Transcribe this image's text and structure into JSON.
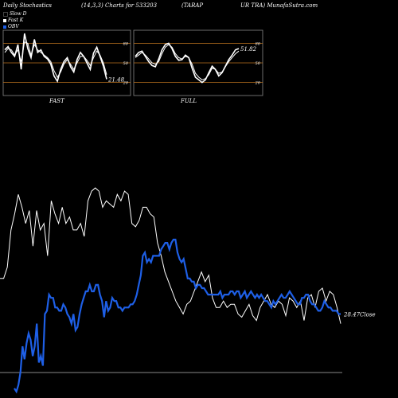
{
  "header": {
    "title_left": "Daily Stochastics",
    "title_mid": "(14,3,3) Charts for 533203",
    "title_sym1": "(TARAP",
    "title_sym2": "UR TRA) MunafaSutra.com"
  },
  "legend": [
    {
      "label": "Slow  D",
      "color": "#000000"
    },
    {
      "label": "Fast K",
      "color": "#ffffff"
    },
    {
      "label": "OBV",
      "color": "#1e5fe6"
    }
  ],
  "colors": {
    "background": "#000000",
    "line_white": "#ffffff",
    "obv_blue": "#1e5fe6",
    "band_orange": "#b8701e",
    "grid_grey": "#888888"
  },
  "chart_data": [
    {
      "type": "line",
      "title": "FAST",
      "ylim": [
        0,
        100
      ],
      "levels": [
        20,
        50,
        80
      ],
      "level_labels": [
        "20",
        "50",
        "80"
      ],
      "last_value_label": "21.48",
      "series": [
        {
          "values": [
            70,
            75,
            66,
            60,
            78,
            40,
            95,
            72,
            58,
            86,
            66,
            70,
            60,
            56,
            48,
            30,
            22,
            40,
            52,
            58,
            44,
            36,
            55,
            66,
            60,
            50,
            40,
            65,
            74,
            60,
            45,
            25
          ]
        },
        {
          "values": [
            66,
            72,
            70,
            62,
            70,
            52,
            82,
            80,
            62,
            78,
            70,
            66,
            62,
            58,
            52,
            38,
            28,
            36,
            48,
            55,
            48,
            40,
            50,
            60,
            60,
            54,
            46,
            58,
            68,
            62,
            50,
            32
          ]
        }
      ]
    },
    {
      "type": "line",
      "title": "FULL",
      "ylim": [
        0,
        100
      ],
      "levels": [
        20,
        50,
        80
      ],
      "level_labels": [
        "20",
        "50",
        "80"
      ],
      "last_value_label": "51.82",
      "series": [
        {
          "values": [
            60,
            66,
            68,
            60,
            52,
            46,
            44,
            56,
            70,
            78,
            80,
            72,
            60,
            54,
            55,
            62,
            58,
            42,
            28,
            24,
            20,
            24,
            35,
            45,
            40,
            30,
            35,
            45,
            55,
            62,
            70,
            72
          ]
        },
        {
          "values": [
            58,
            62,
            66,
            62,
            56,
            50,
            48,
            52,
            64,
            74,
            78,
            74,
            64,
            58,
            56,
            60,
            58,
            48,
            34,
            28,
            24,
            26,
            32,
            42,
            40,
            34,
            36,
            44,
            52,
            58,
            64,
            68
          ]
        }
      ]
    },
    {
      "type": "line",
      "title": "",
      "last_value_label": "28.47",
      "close_label": "Close",
      "series": [
        {
          "values": [
            38,
            38,
            45,
            68,
            78,
            90,
            82,
            72,
            80,
            58,
            80,
            68,
            72,
            52,
            86,
            78,
            72,
            82,
            72,
            76,
            68,
            68,
            72,
            64,
            86,
            92,
            94,
            92,
            82,
            86,
            84,
            82,
            90,
            86,
            92,
            90,
            72,
            70,
            74,
            82,
            82,
            78,
            76,
            60,
            52,
            42,
            36,
            30,
            24,
            20,
            16,
            22,
            24,
            30,
            36,
            42,
            36,
            40,
            26,
            20,
            20,
            24,
            20,
            22,
            22,
            16,
            14,
            18,
            22,
            15,
            12,
            20,
            24,
            28,
            22,
            20,
            24,
            22,
            15,
            26,
            24,
            20,
            24,
            12,
            26,
            28,
            20,
            30,
            32,
            24,
            30,
            28,
            20,
            10
          ],
          "name": "Close"
        },
        {
          "values": [
            -30,
            -32,
            -28,
            -20,
            -4,
            -12,
            -2,
            4,
            0,
            -10,
            -4,
            10,
            -14,
            -10,
            -16,
            16,
            18,
            28,
            26,
            26,
            20,
            20,
            18,
            18,
            22,
            20,
            16,
            14,
            10,
            16,
            6,
            8,
            16,
            22,
            26,
            30,
            30,
            34,
            30,
            30,
            34,
            34,
            28,
            24,
            14,
            24,
            18,
            20,
            26,
            24,
            24,
            20,
            20,
            18,
            20,
            20,
            20,
            22,
            22,
            24,
            28,
            34,
            40,
            52,
            54,
            48,
            50,
            48,
            52,
            52,
            52,
            52,
            56,
            58,
            60,
            60,
            56,
            60,
            62,
            62,
            54,
            50,
            48,
            50,
            44,
            38,
            38,
            36,
            36,
            32,
            34,
            34,
            32,
            32,
            30,
            28,
            28,
            28,
            28,
            28,
            28,
            30,
            26,
            28,
            28,
            28,
            30,
            30,
            28,
            30,
            30,
            26,
            28,
            30,
            26,
            28,
            30,
            28,
            26,
            28,
            26,
            28,
            26,
            24,
            24,
            22,
            20,
            24,
            22,
            24,
            26,
            28,
            26,
            26,
            28,
            30,
            28,
            26,
            24,
            22,
            22,
            26,
            26,
            28,
            28,
            24,
            22,
            22,
            20,
            18,
            18,
            20,
            24,
            22,
            20,
            20,
            18,
            18,
            18,
            16,
            16
          ],
          "name": "OBV"
        }
      ]
    }
  ]
}
